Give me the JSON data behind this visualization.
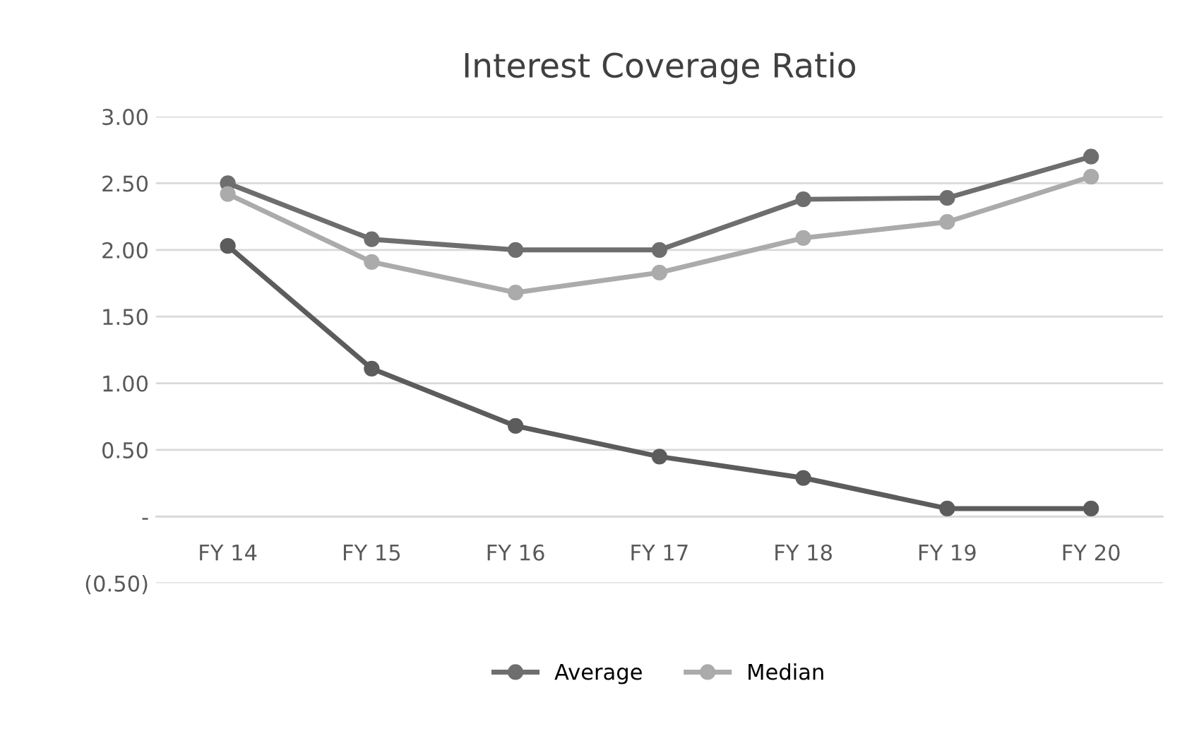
{
  "chart_data": {
    "type": "line",
    "title": "Interest Coverage Ratio",
    "categories": [
      "FY 14",
      "FY 15",
      "FY 16",
      "FY 17",
      "FY 18",
      "FY 19",
      "FY 20"
    ],
    "series": [
      {
        "color": "#5c5c5c",
        "values": [
          2.03,
          1.11,
          0.68,
          0.45,
          0.29,
          0.06,
          0.06
        ]
      },
      {
        "name": "Average",
        "color": "#6e6e6e",
        "values": [
          2.5,
          2.08,
          2.0,
          2.0,
          2.38,
          2.39,
          2.7
        ]
      },
      {
        "name": "Median",
        "color": "#ababab",
        "values": [
          2.42,
          1.91,
          1.68,
          1.83,
          2.09,
          2.21,
          2.55
        ]
      }
    ],
    "ylim": [
      -0.5,
      3.0
    ],
    "yticks": [
      {
        "value": 3.0,
        "label": "3.00"
      },
      {
        "value": 2.5,
        "label": "2.50"
      },
      {
        "value": 2.0,
        "label": "2.00"
      },
      {
        "value": 1.5,
        "label": "1.50"
      },
      {
        "value": 1.0,
        "label": "1.00"
      },
      {
        "value": 0.5,
        "label": "0.50"
      },
      {
        "value": 0,
        "label": "-"
      },
      {
        "value": -0.5,
        "label": "(0.50)"
      }
    ],
    "grid": "y",
    "legend": "bottom",
    "marker": "circle",
    "line_style": "solid"
  }
}
